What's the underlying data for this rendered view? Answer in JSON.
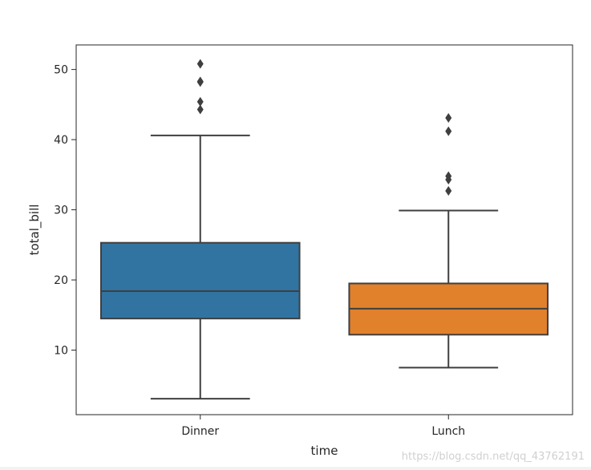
{
  "chart_data": {
    "type": "box",
    "xlabel": "time",
    "ylabel": "total_bill",
    "ylim": [
      0.8,
      53.5
    ],
    "yticks": [
      10,
      20,
      30,
      40,
      50
    ],
    "categories": [
      "Dinner",
      "Lunch"
    ],
    "grid": false,
    "boxes": [
      {
        "category": "Dinner",
        "whisker_low": 3.07,
        "q1": 14.5,
        "median": 18.4,
        "q3": 25.3,
        "whisker_high": 40.6,
        "outliers": [
          44.3,
          45.4,
          48.2,
          48.3,
          50.8
        ],
        "color": "#3274a1"
      },
      {
        "category": "Lunch",
        "whisker_low": 7.5,
        "q1": 12.2,
        "median": 15.9,
        "q3": 19.5,
        "whisker_high": 29.9,
        "outliers": [
          32.7,
          34.3,
          34.8,
          41.2,
          43.1
        ],
        "color": "#e1812c"
      }
    ],
    "line_color": "#3f3f3f"
  },
  "watermark": "https://blog.csdn.net/qq_43762191"
}
